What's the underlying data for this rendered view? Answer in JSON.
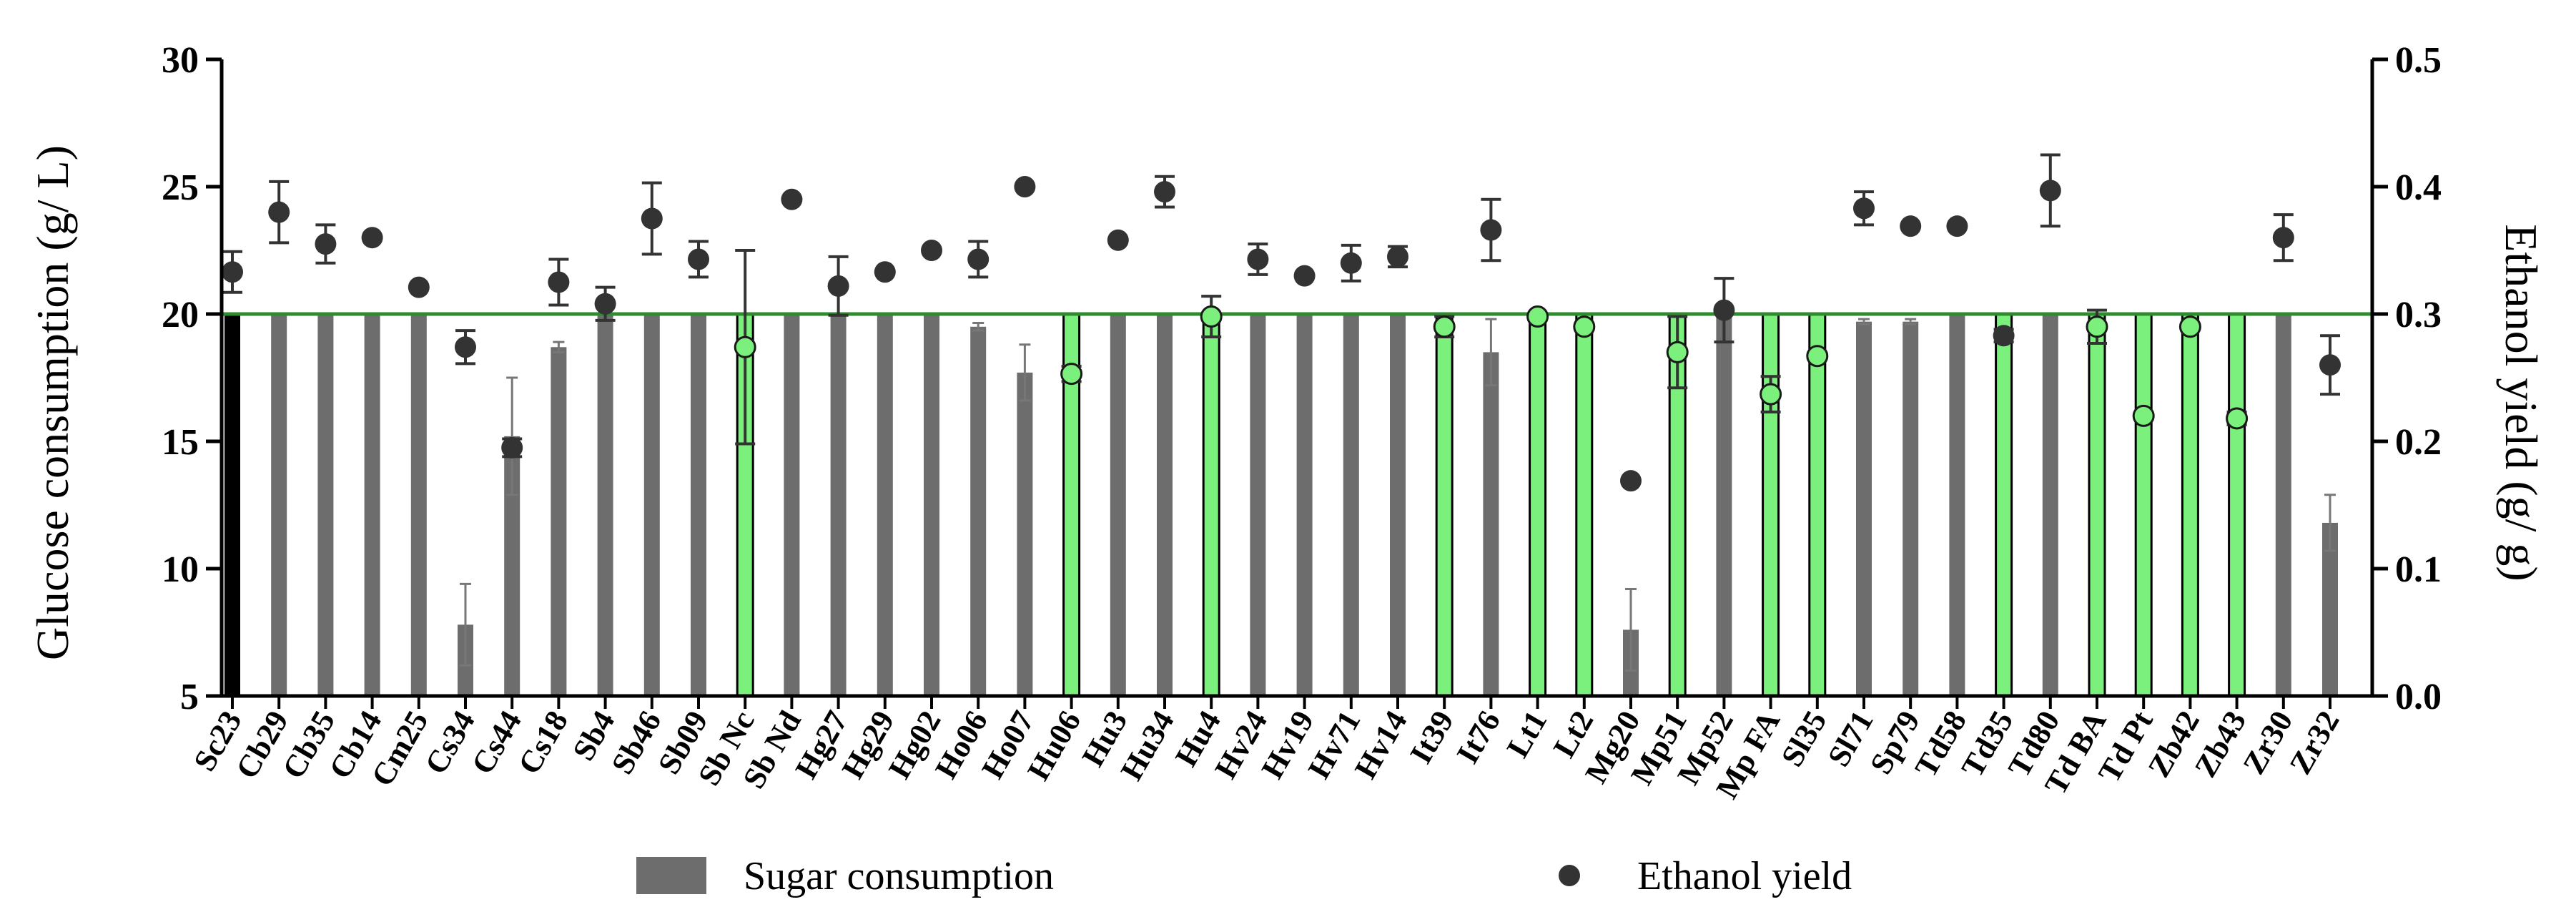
{
  "chart_data": {
    "type": "bar",
    "categories": [
      "Sc23",
      "Cb29",
      "Cb35",
      "Cb14",
      "Cm25",
      "Cs34",
      "Cs44",
      "Cs18",
      "Sb4",
      "Sb46",
      "Sb09",
      "Sb Nc",
      "Sb Nd",
      "Hg27",
      "Hg29",
      "Hg02",
      "Ho06",
      "Ho07",
      "Hu06",
      "Hu3",
      "Hu34",
      "Hu4",
      "Hv24",
      "Hv19",
      "Hv71",
      "Hv14",
      "It39",
      "It76",
      "Lt1",
      "Lt2",
      "Mg20",
      "Mp51",
      "Mp52",
      "Mp FA",
      "Sl35",
      "Sl71",
      "Sp79",
      "Td58",
      "Td35",
      "Td80",
      "Td BA",
      "Td Pt",
      "Zb42",
      "Zb43",
      "Zr30",
      "Zr32"
    ],
    "series": [
      {
        "name": "Sugar consumption",
        "axis": "left",
        "kind": "bar",
        "values": [
          20,
          20,
          20,
          20,
          20,
          7.8,
          15.2,
          18.7,
          20,
          20,
          20,
          20,
          20,
          20,
          20,
          20,
          19.5,
          17.7,
          20,
          20,
          20,
          20,
          20,
          20,
          20,
          20,
          20,
          18.5,
          20,
          20,
          7.6,
          20,
          20,
          20,
          20,
          19.7,
          19.7,
          20,
          20,
          20,
          20,
          20,
          20,
          20,
          20,
          11.8
        ],
        "error": [
          0,
          0,
          0,
          0,
          0,
          1.6,
          2.3,
          0.2,
          0,
          0,
          0,
          0,
          0,
          0,
          0,
          0,
          0.15,
          1.1,
          0,
          0,
          0,
          0,
          0,
          0,
          0,
          0,
          0,
          1.3,
          0,
          0,
          1.6,
          0,
          0,
          0,
          0,
          0.1,
          0.1,
          0,
          0,
          0,
          0,
          0,
          0,
          0,
          0,
          1.1
        ],
        "bar_style": [
          "reference",
          "gray",
          "gray",
          "gray",
          "gray",
          "gray",
          "gray",
          "gray",
          "gray",
          "gray",
          "gray",
          "highlight",
          "gray",
          "gray",
          "gray",
          "gray",
          "gray",
          "gray",
          "highlight",
          "gray",
          "gray",
          "highlight",
          "gray",
          "gray",
          "gray",
          "gray",
          "highlight",
          "gray",
          "highlight",
          "highlight",
          "gray",
          "highlight",
          "gray",
          "highlight",
          "highlight",
          "gray",
          "gray",
          "gray",
          "highlight",
          "gray",
          "highlight",
          "highlight",
          "highlight",
          "highlight",
          "gray",
          "gray"
        ]
      },
      {
        "name": "Ethanol yield",
        "axis": "right",
        "kind": "scatter",
        "values": [
          0.333,
          0.38,
          0.355,
          0.36,
          0.321,
          0.274,
          0.195,
          0.325,
          0.308,
          0.375,
          0.343,
          0.274,
          0.39,
          0.322,
          0.333,
          0.35,
          0.343,
          0.4,
          0.253,
          0.358,
          0.396,
          0.298,
          0.343,
          0.33,
          0.34,
          0.345,
          0.29,
          0.366,
          0.298,
          0.29,
          0.169,
          0.27,
          0.303,
          0.237,
          0.267,
          0.383,
          0.369,
          0.369,
          0.283,
          0.397,
          0.29,
          0.22,
          0.29,
          0.218,
          0.36,
          0.26
        ],
        "error": [
          0.016,
          0.024,
          0.015,
          0,
          0,
          0.013,
          0.007,
          0.018,
          0.013,
          0.028,
          0.014,
          0.076,
          0,
          0.023,
          0,
          0,
          0.014,
          0,
          0.006,
          0,
          0.012,
          0.016,
          0.012,
          0,
          0.014,
          0.008,
          0.008,
          0.024,
          0,
          0,
          0,
          0.028,
          0.025,
          0.014,
          0,
          0.013,
          0,
          0,
          0.005,
          0.028,
          0.013,
          0,
          0,
          0.005,
          0.018,
          0.023
        ],
        "marker_style": [
          "dark",
          "dark",
          "dark",
          "dark",
          "dark",
          "dark",
          "dark",
          "dark",
          "dark",
          "dark",
          "dark",
          "green",
          "dark",
          "dark",
          "dark",
          "dark",
          "dark",
          "dark",
          "green",
          "dark",
          "dark",
          "green",
          "dark",
          "dark",
          "dark",
          "dark",
          "green",
          "dark",
          "green",
          "green",
          "dark",
          "green",
          "dark",
          "green",
          "green",
          "dark",
          "dark",
          "dark",
          "dark",
          "dark",
          "green",
          "green",
          "green",
          "green",
          "dark",
          "dark"
        ]
      }
    ],
    "reference_line": {
      "y": 20,
      "axis": "left",
      "color": "#2e8b2e"
    },
    "ylabel": "Glucose consumption (g/ L)",
    "ylabel_right": "Ethanol yield (g/ g)",
    "ylim": [
      5,
      30
    ],
    "ylim_right": [
      0.0,
      0.5
    ],
    "yticks": [
      "5",
      "10",
      "15",
      "20",
      "25",
      "30"
    ],
    "yticks_right": [
      "0.0",
      "0.1",
      "0.2",
      "0.3",
      "0.4",
      "0.5"
    ],
    "legend_position": "bottom",
    "colors": {
      "bar_gray": "#6d6d6d",
      "bar_reference": "#000000",
      "bar_highlight": "#7cf07c",
      "marker_dark": "#333333",
      "marker_green": "#7cf07c",
      "reference_line": "#2e8b2e"
    },
    "grid": false
  },
  "legend": {
    "bar_label": "Sugar consumption",
    "marker_label": "Ethanol yield"
  }
}
